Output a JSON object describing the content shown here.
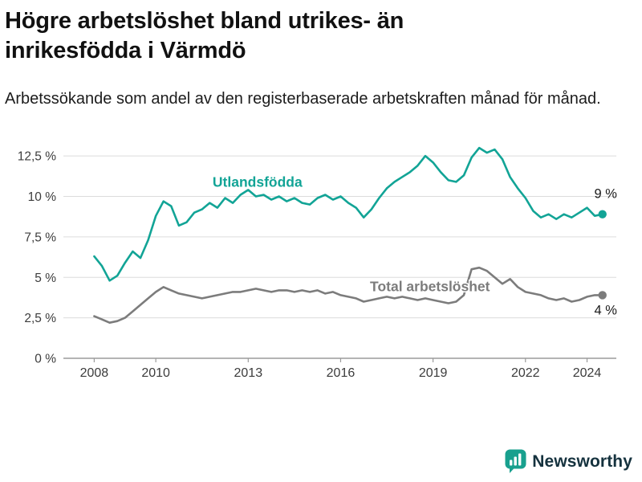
{
  "header": {
    "title": "Högre arbetslöshet bland utrikes- än inrikesfödda i Värmdö",
    "subtitle": "Arbetssökande som andel av den registerbaserade arbetskraften månad för månad."
  },
  "footer": {
    "brand": "Newsworthy",
    "logo_color": "#18a08e",
    "text_color": "#15323e"
  },
  "chart_data": {
    "type": "line",
    "title": "Högre arbetslöshet bland utrikes- än inrikesfödda i Värmdö",
    "subtitle": "Arbetssökande som andel av den registerbaserade arbetskraften månad för månad.",
    "xlabel": "",
    "ylabel": "",
    "grid": true,
    "legend": "inline-labels",
    "xlim": [
      2007.0,
      2024.95
    ],
    "ylim": [
      0,
      13.4
    ],
    "yticks": [
      0,
      2.5,
      5,
      7.5,
      10,
      12.5
    ],
    "ytick_labels": [
      "0 %",
      "2,5 %",
      "5 %",
      "7,5 %",
      "10 %",
      "12,5 %"
    ],
    "xticks": [
      2008,
      2010,
      2013,
      2016,
      2019,
      2022,
      2024
    ],
    "x": [
      2008.0,
      2008.25,
      2008.5,
      2008.75,
      2009.0,
      2009.25,
      2009.5,
      2009.75,
      2010.0,
      2010.25,
      2010.5,
      2010.75,
      2011.0,
      2011.25,
      2011.5,
      2011.75,
      2012.0,
      2012.25,
      2012.5,
      2012.75,
      2013.0,
      2013.25,
      2013.5,
      2013.75,
      2014.0,
      2014.25,
      2014.5,
      2014.75,
      2015.0,
      2015.25,
      2015.5,
      2015.75,
      2016.0,
      2016.25,
      2016.5,
      2016.75,
      2017.0,
      2017.25,
      2017.5,
      2017.75,
      2018.0,
      2018.25,
      2018.5,
      2018.75,
      2019.0,
      2019.25,
      2019.5,
      2019.75,
      2020.0,
      2020.25,
      2020.5,
      2020.75,
      2021.0,
      2021.25,
      2021.5,
      2021.75,
      2022.0,
      2022.25,
      2022.5,
      2022.75,
      2023.0,
      2023.25,
      2023.5,
      2023.75,
      2024.0,
      2024.25,
      2024.5
    ],
    "series": [
      {
        "name": "Utlandsfödda",
        "color": "#12a496",
        "end_label": "9 %",
        "end_label_dy": -20,
        "label_pos": {
          "x": 2013.3,
          "y": 10.6
        },
        "values": [
          6.3,
          5.7,
          4.8,
          5.1,
          5.9,
          6.6,
          6.2,
          7.3,
          8.8,
          9.7,
          9.4,
          8.2,
          8.4,
          9.0,
          9.2,
          9.6,
          9.3,
          9.9,
          9.6,
          10.1,
          10.4,
          10.0,
          10.1,
          9.8,
          10.0,
          9.7,
          9.9,
          9.6,
          9.5,
          9.9,
          10.1,
          9.8,
          10.0,
          9.6,
          9.3,
          8.7,
          9.2,
          9.9,
          10.5,
          10.9,
          11.2,
          11.5,
          11.9,
          12.5,
          12.1,
          11.5,
          11.0,
          10.9,
          11.3,
          12.4,
          13.0,
          12.7,
          12.9,
          12.3,
          11.2,
          10.5,
          9.9,
          9.1,
          8.7,
          8.9,
          8.6,
          8.9,
          8.7,
          9.0,
          9.3,
          8.8,
          8.9
        ]
      },
      {
        "name": "Total arbetslöshet",
        "color": "#7c7c7c",
        "end_label": "4 %",
        "end_label_dy": 24,
        "label_pos": {
          "x": 2018.9,
          "y": 4.15
        },
        "values": [
          2.6,
          2.4,
          2.2,
          2.3,
          2.5,
          2.9,
          3.3,
          3.7,
          4.1,
          4.4,
          4.2,
          4.0,
          3.9,
          3.8,
          3.7,
          3.8,
          3.9,
          4.0,
          4.1,
          4.1,
          4.2,
          4.3,
          4.2,
          4.1,
          4.2,
          4.2,
          4.1,
          4.2,
          4.1,
          4.2,
          4.0,
          4.1,
          3.9,
          3.8,
          3.7,
          3.5,
          3.6,
          3.7,
          3.8,
          3.7,
          3.8,
          3.7,
          3.6,
          3.7,
          3.6,
          3.5,
          3.4,
          3.5,
          3.9,
          5.5,
          5.6,
          5.4,
          5.0,
          4.6,
          4.9,
          4.4,
          4.1,
          4.0,
          3.9,
          3.7,
          3.6,
          3.7,
          3.5,
          3.6,
          3.8,
          3.9,
          3.9
        ]
      }
    ]
  }
}
